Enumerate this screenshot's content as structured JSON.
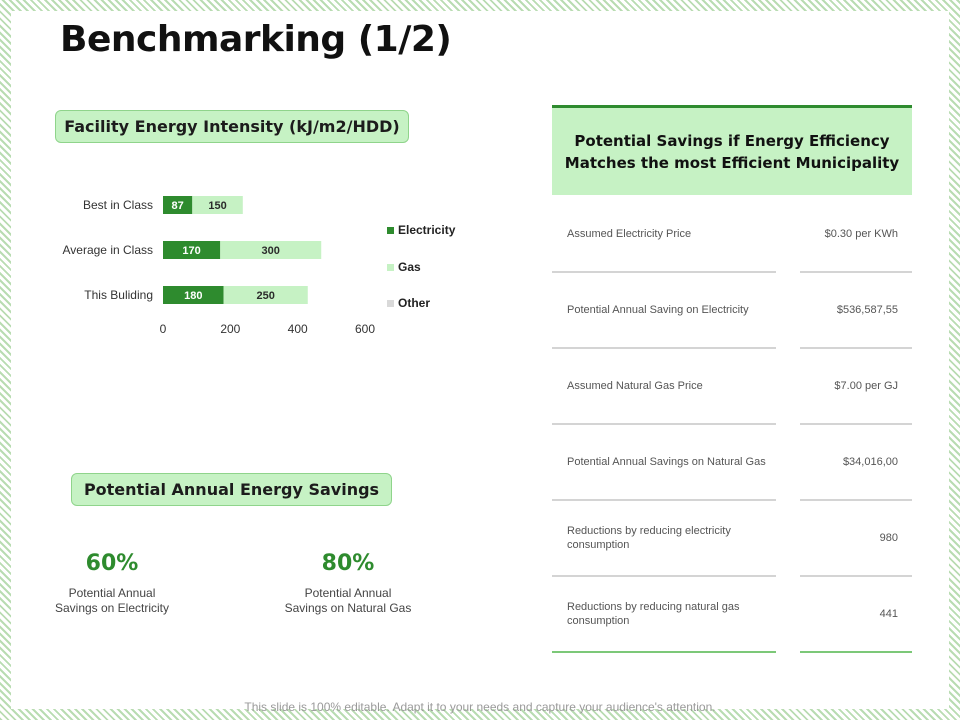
{
  "title": "Benchmarking (1/2)",
  "chart_pill": "Facility Energy Intensity (kJ/m2/HDD)",
  "chart_data": {
    "type": "bar",
    "orientation": "horizontal",
    "stacked": true,
    "categories": [
      "Best in Class",
      "Average in Class",
      "This Buliding"
    ],
    "series": [
      {
        "name": "Electricity",
        "color": "#2e8b2e",
        "values": [
          87,
          170,
          180
        ]
      },
      {
        "name": "Gas",
        "color": "#c6f2c4",
        "values": [
          150,
          300,
          250
        ]
      },
      {
        "name": "Other",
        "color": "#d9d9d9",
        "values": [
          0,
          0,
          0
        ]
      }
    ],
    "xlim": [
      0,
      600
    ],
    "xticks": [
      0,
      200,
      400,
      600
    ],
    "legend_position": "right",
    "grid": false
  },
  "savings_pill": "Potential Annual Energy Savings",
  "stats": [
    {
      "value": "60%",
      "label_line1": "Potential Annual",
      "label_line2": "Savings on Electricity"
    },
    {
      "value": "80%",
      "label_line1": "Potential Annual",
      "label_line2": "Savings on Natural Gas"
    }
  ],
  "table": {
    "header_line1": "Potential Savings if Energy Efficiency",
    "header_line2": "Matches the most Efficient Municipality",
    "rows": [
      {
        "label": "Assumed Electricity Price",
        "value": "$0.30 per KWh"
      },
      {
        "label": "Potential Annual Saving on Electricity",
        "value": "$536,587,55"
      },
      {
        "label": "Assumed Natural Gas Price",
        "value": "$7.00 per GJ"
      },
      {
        "label": "Potential Annual Savings on Natural Gas",
        "value": "$34,016,00"
      },
      {
        "label": "Reductions by reducing electricity consumption",
        "value": "980"
      },
      {
        "label": "Reductions by reducing natural gas consumption",
        "value": "441"
      }
    ]
  },
  "footer": "This slide is 100% editable. Adapt it to your needs and capture your audience's attention."
}
